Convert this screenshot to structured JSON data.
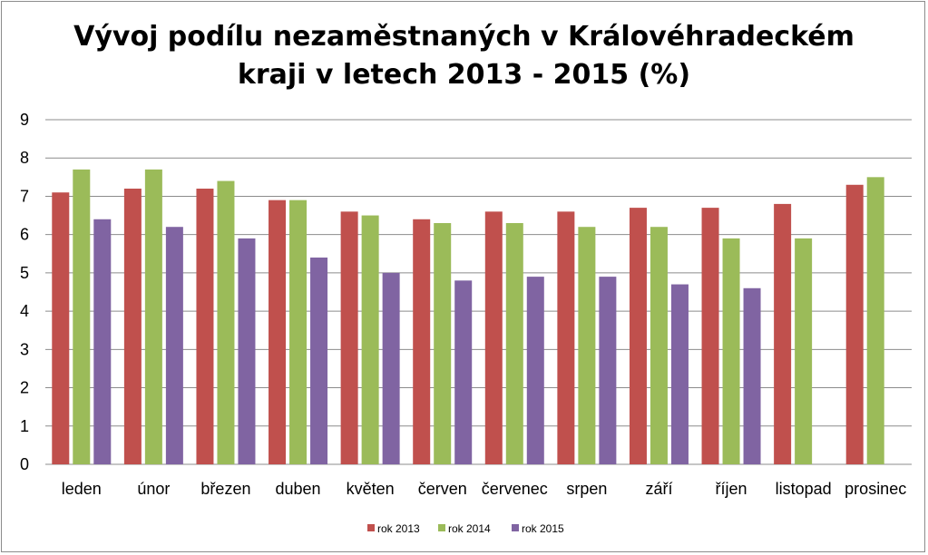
{
  "chart_data": {
    "type": "bar",
    "title_line1": "Vývoj podílu nezaměstnaných v Královéhradeckém",
    "title_line2": "kraji v letech 2013 - 2015 (%)",
    "xlabel": "",
    "ylabel": "",
    "ylim": [
      0,
      9
    ],
    "yticks": [
      "0",
      "1",
      "2",
      "3",
      "4",
      "5",
      "6",
      "7",
      "8",
      "9"
    ],
    "grid": true,
    "legend_position": "bottom",
    "categories": [
      "leden",
      "únor",
      "březen",
      "duben",
      "květen",
      "červen",
      "červenec",
      "srpen",
      "září",
      "říjen",
      "listopad",
      "prosinec"
    ],
    "series": [
      {
        "name": "rok 2013",
        "color": "#c0504d",
        "values": [
          7.1,
          7.2,
          7.2,
          6.9,
          6.6,
          6.4,
          6.6,
          6.6,
          6.7,
          6.7,
          6.8,
          7.3
        ]
      },
      {
        "name": "rok 2014",
        "color": "#9bbb59",
        "values": [
          7.7,
          7.7,
          7.4,
          6.9,
          6.5,
          6.3,
          6.3,
          6.2,
          6.2,
          5.9,
          5.9,
          7.5
        ]
      },
      {
        "name": "rok 2015",
        "color": "#8064a2",
        "values": [
          6.4,
          6.2,
          5.9,
          5.4,
          5.0,
          4.8,
          4.9,
          4.9,
          4.7,
          4.6,
          null,
          null
        ]
      }
    ]
  }
}
